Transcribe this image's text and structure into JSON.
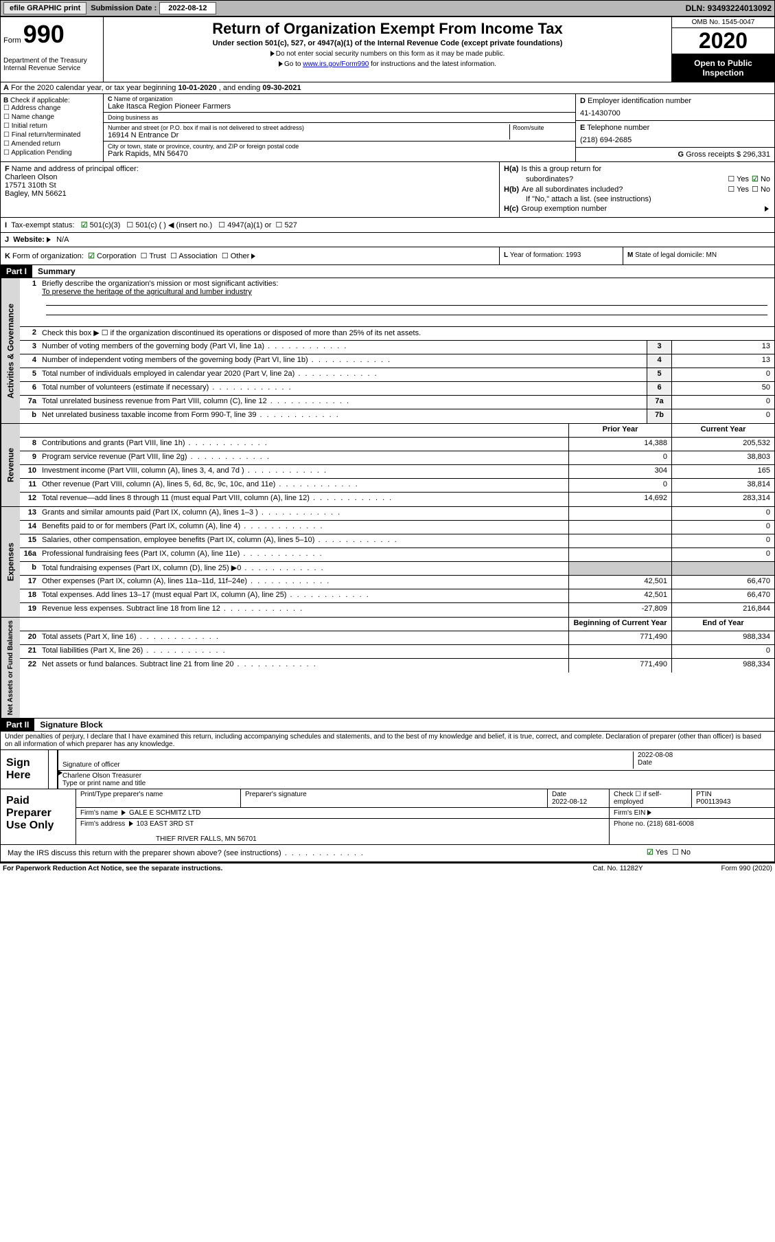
{
  "topbar": {
    "efile": "efile GRAPHIC print",
    "sub_label": "Submission Date :",
    "sub_date": "2022-08-12",
    "dln": "DLN: 93493224013092"
  },
  "header": {
    "form_word": "Form",
    "form_num": "990",
    "dept": "Department of the Treasury\nInternal Revenue Service",
    "title": "Return of Organization Exempt From Income Tax",
    "subtitle": "Under section 501(c), 527, or 4947(a)(1) of the Internal Revenue Code (except private foundations)",
    "note1": "Do not enter social security numbers on this form as it may be made public.",
    "note2_pre": "Go to ",
    "note2_link": "www.irs.gov/Form990",
    "note2_post": " for instructions and the latest information.",
    "omb": "OMB No. 1545-0047",
    "year": "2020",
    "inspection": "Open to Public Inspection"
  },
  "rowA": {
    "pre": "For the 2020 calendar year, or tax year beginning ",
    "begin": "10-01-2020",
    "mid": " , and ending ",
    "end": "09-30-2021"
  },
  "sectionB": {
    "label": "Check if applicable:",
    "opts": [
      "Address change",
      "Name change",
      "Initial return",
      "Final return/terminated",
      "Amended return",
      "Application Pending"
    ]
  },
  "sectionC": {
    "name_lbl": "Name of organization",
    "name": "Lake Itasca Region Pioneer Farmers",
    "dba_lbl": "Doing business as",
    "addr_lbl": "Number and street (or P.O. box if mail is not delivered to street address)",
    "room_lbl": "Room/suite",
    "addr": "16914 N Entrance Dr",
    "city_lbl": "City or town, state or province, country, and ZIP or foreign postal code",
    "city": "Park Rapids, MN  56470"
  },
  "sectionD": {
    "lbl": "Employer identification number",
    "val": "41-1430700"
  },
  "sectionE": {
    "lbl": "Telephone number",
    "val": "(218) 694-2685"
  },
  "sectionG": {
    "lbl": "Gross receipts $",
    "val": "296,331"
  },
  "sectionF": {
    "lbl": "Name and address of principal officer:",
    "name": "Charleen Olson",
    "addr1": "17571 310th St",
    "addr2": "Bagley, MN  56621"
  },
  "sectionH": {
    "a_lbl": "Is this a group return for",
    "a_sub": "subordinates?",
    "b_lbl": "Are all subordinates included?",
    "b_note": "If \"No,\" attach a list. (see instructions)",
    "c_lbl": "Group exemption number",
    "yes": "Yes",
    "no": "No"
  },
  "sectionI": {
    "lbl": "Tax-exempt status:",
    "opt1": "501(c)(3)",
    "opt2": "501(c) (  )",
    "opt2_note": "(insert no.)",
    "opt3": "4947(a)(1) or",
    "opt4": "527"
  },
  "sectionJ": {
    "lbl": "Website:",
    "val": "N/A"
  },
  "sectionK": {
    "lbl": "Form of organization:",
    "opts": [
      "Corporation",
      "Trust",
      "Association",
      "Other"
    ]
  },
  "sectionL": {
    "lbl": "Year of formation:",
    "val": "1993"
  },
  "sectionM": {
    "lbl": "State of legal domicile:",
    "val": "MN"
  },
  "partI": {
    "hdr": "Part I",
    "title": "Summary"
  },
  "gov": {
    "side": "Activities & Governance",
    "l1_lbl": "Briefly describe the organization's mission or most significant activities:",
    "l1_val": "To preserve the heritage of the agricultural and lumber industry",
    "l2_lbl": "Check this box ▶ ☐ if the organization discontinued its operations or disposed of more than 25% of its net assets.",
    "lines": [
      {
        "n": "3",
        "t": "Number of voting members of the governing body (Part VI, line 1a)",
        "b": "3",
        "v": "13"
      },
      {
        "n": "4",
        "t": "Number of independent voting members of the governing body (Part VI, line 1b)",
        "b": "4",
        "v": "13"
      },
      {
        "n": "5",
        "t": "Total number of individuals employed in calendar year 2020 (Part V, line 2a)",
        "b": "5",
        "v": "0"
      },
      {
        "n": "6",
        "t": "Total number of volunteers (estimate if necessary)",
        "b": "6",
        "v": "50"
      },
      {
        "n": "7a",
        "t": "Total unrelated business revenue from Part VIII, column (C), line 12",
        "b": "7a",
        "v": "0"
      },
      {
        "n": "b",
        "t": "Net unrelated business taxable income from Form 990-T, line 39",
        "b": "7b",
        "v": "0"
      }
    ]
  },
  "rev": {
    "side": "Revenue",
    "hdr_prior": "Prior Year",
    "hdr_current": "Current Year",
    "lines": [
      {
        "n": "8",
        "t": "Contributions and grants (Part VIII, line 1h)",
        "p": "14,388",
        "c": "205,532"
      },
      {
        "n": "9",
        "t": "Program service revenue (Part VIII, line 2g)",
        "p": "0",
        "c": "38,803"
      },
      {
        "n": "10",
        "t": "Investment income (Part VIII, column (A), lines 3, 4, and 7d )",
        "p": "304",
        "c": "165"
      },
      {
        "n": "11",
        "t": "Other revenue (Part VIII, column (A), lines 5, 6d, 8c, 9c, 10c, and 11e)",
        "p": "0",
        "c": "38,814"
      },
      {
        "n": "12",
        "t": "Total revenue—add lines 8 through 11 (must equal Part VIII, column (A), line 12)",
        "p": "14,692",
        "c": "283,314"
      }
    ]
  },
  "exp": {
    "side": "Expenses",
    "lines": [
      {
        "n": "13",
        "t": "Grants and similar amounts paid (Part IX, column (A), lines 1–3 )",
        "p": "",
        "c": "0"
      },
      {
        "n": "14",
        "t": "Benefits paid to or for members (Part IX, column (A), line 4)",
        "p": "",
        "c": "0"
      },
      {
        "n": "15",
        "t": "Salaries, other compensation, employee benefits (Part IX, column (A), lines 5–10)",
        "p": "",
        "c": "0"
      },
      {
        "n": "16a",
        "t": "Professional fundraising fees (Part IX, column (A), line 11e)",
        "p": "",
        "c": "0"
      },
      {
        "n": "b",
        "t": "Total fundraising expenses (Part IX, column (D), line 25) ▶0",
        "p": "shaded",
        "c": "shaded"
      },
      {
        "n": "17",
        "t": "Other expenses (Part IX, column (A), lines 11a–11d, 11f–24e)",
        "p": "42,501",
        "c": "66,470"
      },
      {
        "n": "18",
        "t": "Total expenses. Add lines 13–17 (must equal Part IX, column (A), line 25)",
        "p": "42,501",
        "c": "66,470"
      },
      {
        "n": "19",
        "t": "Revenue less expenses. Subtract line 18 from line 12",
        "p": "-27,809",
        "c": "216,844"
      }
    ]
  },
  "net": {
    "side": "Net Assets or Fund Balances",
    "hdr_begin": "Beginning of Current Year",
    "hdr_end": "End of Year",
    "lines": [
      {
        "n": "20",
        "t": "Total assets (Part X, line 16)",
        "p": "771,490",
        "c": "988,334"
      },
      {
        "n": "21",
        "t": "Total liabilities (Part X, line 26)",
        "p": "",
        "c": "0"
      },
      {
        "n": "22",
        "t": "Net assets or fund balances. Subtract line 21 from line 20",
        "p": "771,490",
        "c": "988,334"
      }
    ]
  },
  "partII": {
    "hdr": "Part II",
    "title": "Signature Block",
    "declaration": "Under penalties of perjury, I declare that I have examined this return, including accompanying schedules and statements, and to the best of my knowledge and belief, it is true, correct, and complete. Declaration of preparer (other than officer) is based on all information of which preparer has any knowledge."
  },
  "sign": {
    "label": "Sign Here",
    "sig_lbl": "Signature of officer",
    "date_lbl": "Date",
    "date_val": "2022-08-08",
    "name": "Charlene Olson Treasurer",
    "name_lbl": "Type or print name and title"
  },
  "prep": {
    "label": "Paid Preparer Use Only",
    "c1": "Print/Type preparer's name",
    "c2": "Preparer's signature",
    "c3": "Date",
    "c3v": "2022-08-12",
    "c4": "Check ☐ if self-employed",
    "c5": "PTIN",
    "c5v": "P00113943",
    "firm_lbl": "Firm's name",
    "firm": "GALE E SCHMITZ LTD",
    "ein_lbl": "Firm's EIN",
    "addr_lbl": "Firm's address",
    "addr1": "103 EAST 3RD ST",
    "addr2": "THIEF RIVER FALLS, MN  56701",
    "phone_lbl": "Phone no.",
    "phone": "(218) 681-6008"
  },
  "discuss": {
    "q": "May the IRS discuss this return with the preparer shown above? (see instructions)",
    "yes": "Yes",
    "no": "No"
  },
  "footer": {
    "left": "For Paperwork Reduction Act Notice, see the separate instructions.",
    "mid": "Cat. No. 11282Y",
    "right": "Form 990 (2020)"
  }
}
